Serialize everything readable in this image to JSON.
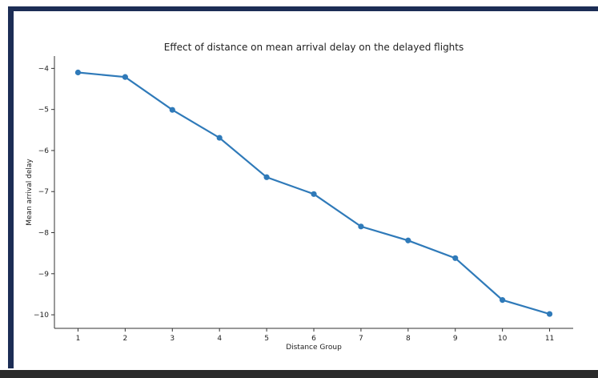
{
  "chart_data": {
    "type": "line",
    "title": "Effect of distance on mean arrival delay on the delayed flights",
    "xlabel": "Distance Group",
    "ylabel": "Mean arrival delay",
    "x": [
      1,
      2,
      3,
      4,
      5,
      6,
      7,
      8,
      9,
      10,
      11
    ],
    "x_tick_labels": [
      "1",
      "2",
      "3",
      "4",
      "5",
      "6",
      "7",
      "8",
      "9",
      "10",
      "11"
    ],
    "y_tick_labels": [
      "−4",
      "−5",
      "−6",
      "−7",
      "−8",
      "−9",
      "−10"
    ],
    "y_ticks": [
      -4,
      -5,
      -6,
      -7,
      -8,
      -9,
      -10
    ],
    "series": [
      {
        "values": [
          -4.1,
          -4.21,
          -5.01,
          -5.69,
          -6.65,
          -7.06,
          -7.85,
          -8.19,
          -8.62,
          -9.64,
          -9.98
        ],
        "color": "#2f7ab9"
      }
    ],
    "xlim": [
      0.5,
      11.5
    ],
    "ylim": [
      -10.33,
      -3.7
    ],
    "grid": false,
    "legend": "none"
  },
  "colors": {
    "frame": "#1c2d55",
    "line": "#2f7ab9"
  }
}
